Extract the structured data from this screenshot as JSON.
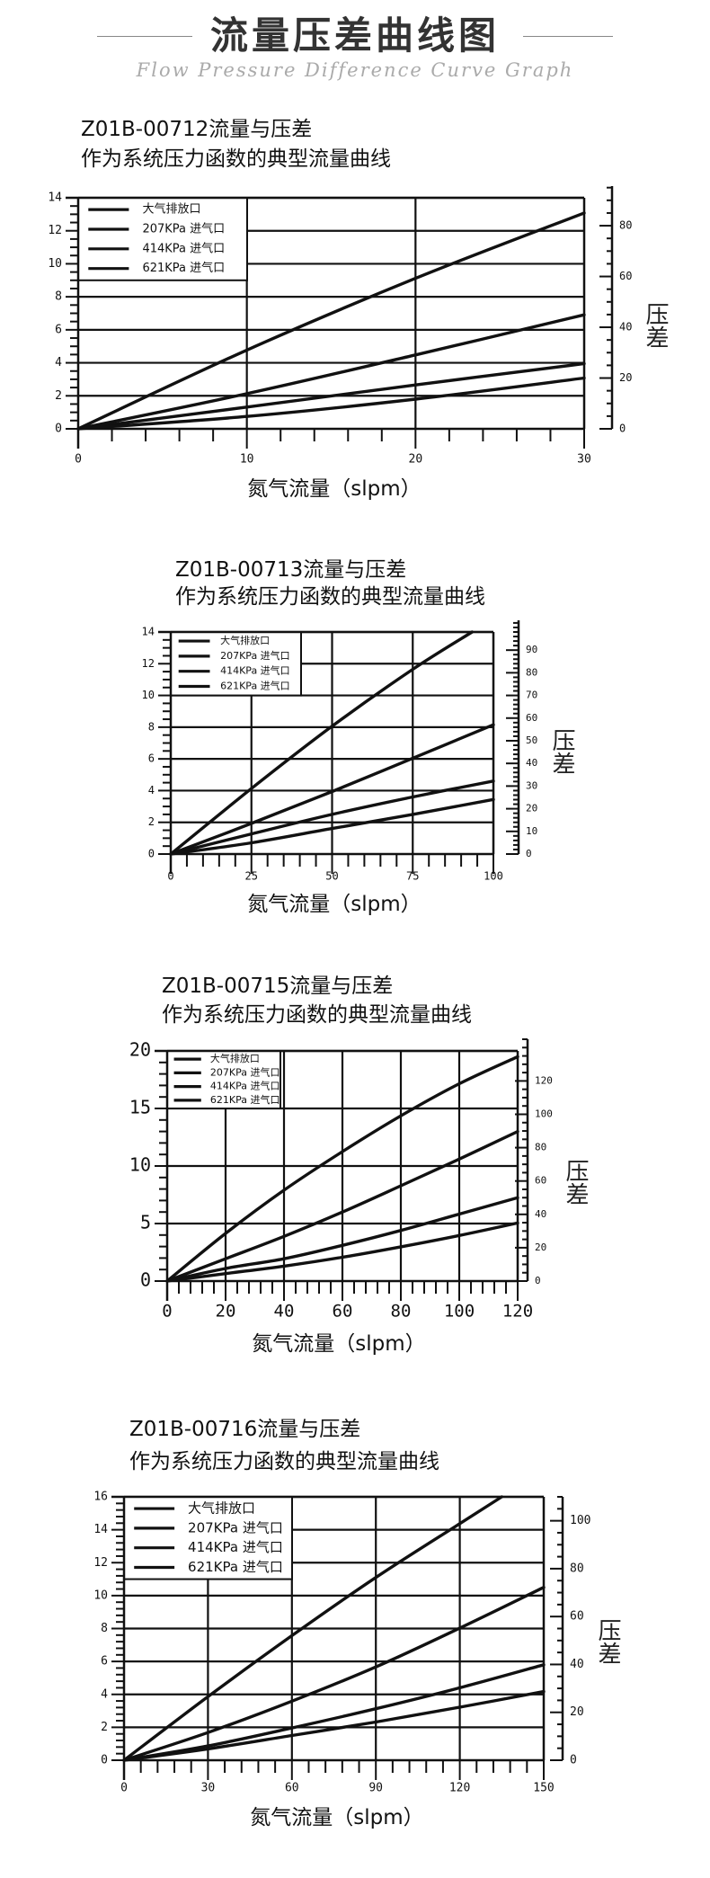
{
  "header": {
    "title": "流量压差曲线图",
    "subtitle": "Flow Pressure Difference Curve Graph"
  },
  "colors": {
    "line": "#111111",
    "header_text": "#333333",
    "subtitle_text": "#aaaaaa"
  },
  "chart_data": [
    {
      "type": "line",
      "title": "Z01B-00712流量与压差",
      "subtitle": "作为系统压力函数的典型流量曲线",
      "xlabel": "氮气流量（slpm）",
      "y2label": "压差",
      "xlim": [
        0,
        30
      ],
      "ylim": [
        0,
        14
      ],
      "y2lim": [
        0,
        91
      ],
      "xticks": [
        0,
        10,
        20,
        30
      ],
      "yticks": [
        0,
        2,
        4,
        6,
        8,
        10,
        12,
        14
      ],
      "y2ticks": [
        0,
        20,
        40,
        60,
        80
      ],
      "grid": true,
      "legend_position": "top-left",
      "series": [
        {
          "name": "大气排放口",
          "x": [
            0,
            10,
            20,
            30
          ],
          "y": [
            0,
            4.77,
            9.12,
            13.08
          ]
        },
        {
          "name": "207KPa 进气口",
          "x": [
            0,
            10,
            20,
            30
          ],
          "y": [
            0,
            2.13,
            4.48,
            6.91
          ]
        },
        {
          "name": "414KPa 进气口",
          "x": [
            0,
            10,
            20,
            30
          ],
          "y": [
            0,
            1.32,
            2.66,
            3.95
          ]
        },
        {
          "name": "621KPa 进气口",
          "x": [
            0,
            10,
            20,
            30
          ],
          "y": [
            0,
            0.75,
            1.8,
            3.08
          ]
        }
      ]
    },
    {
      "type": "line",
      "title": "Z01B-00713流量与压差",
      "subtitle": "作为系统压力函数的典型流量曲线",
      "xlabel": "氮气流量（slpm）",
      "y2label": "压差",
      "xlim": [
        0,
        100
      ],
      "ylim": [
        0,
        14
      ],
      "y2lim": [
        0,
        98
      ],
      "xticks": [
        0,
        25,
        50,
        75,
        100
      ],
      "yticks": [
        0,
        2,
        4,
        6,
        8,
        10,
        12,
        14
      ],
      "y2ticks": [
        0,
        10,
        20,
        30,
        40,
        50,
        60,
        70,
        80,
        90
      ],
      "grid": true,
      "legend_position": "top-left",
      "series": [
        {
          "name": "大气排放口",
          "x": [
            0,
            25,
            50,
            75,
            93.4
          ],
          "y": [
            0,
            4.13,
            8.06,
            11.65,
            14
          ]
        },
        {
          "name": "207KPa 进气口",
          "x": [
            0,
            25,
            50,
            75,
            100
          ],
          "y": [
            0,
            1.93,
            3.94,
            6.04,
            8.15
          ]
        },
        {
          "name": "414KPa 进气口",
          "x": [
            0,
            25,
            50,
            75,
            100
          ],
          "y": [
            0,
            1.27,
            2.5,
            3.6,
            4.6
          ]
        },
        {
          "name": "621KPa 进气口",
          "x": [
            0,
            25,
            50,
            75,
            100
          ],
          "y": [
            0,
            0.71,
            1.61,
            2.5,
            3.44
          ]
        }
      ]
    },
    {
      "type": "line",
      "title": "Z01B-00715流量与压差",
      "subtitle": "作为系统压力函数的典型流量曲线",
      "xlabel": "氮气流量（slpm）",
      "y2label": "压差",
      "xlim": [
        0,
        120
      ],
      "ylim": [
        0,
        20
      ],
      "y2lim": [
        0,
        138
      ],
      "xticks": [
        0,
        20,
        40,
        60,
        80,
        100,
        120
      ],
      "yticks": [
        0,
        5,
        10,
        15,
        20
      ],
      "y2ticks": [
        0,
        20,
        40,
        60,
        80,
        100,
        120
      ],
      "grid": true,
      "legend_position": "top-left",
      "series": [
        {
          "name": "大气排放口",
          "x": [
            0,
            20,
            40,
            60,
            80,
            100,
            120
          ],
          "y": [
            0,
            4.14,
            7.9,
            11.25,
            14.36,
            17.15,
            19.5
          ]
        },
        {
          "name": "207KPa 进气口",
          "x": [
            0,
            20,
            40,
            60,
            80,
            100,
            120
          ],
          "y": [
            0,
            1.94,
            3.88,
            6.0,
            8.28,
            10.6,
            13.0
          ]
        },
        {
          "name": "414KPa 进气口",
          "x": [
            0,
            20,
            40,
            60,
            80,
            100,
            120
          ],
          "y": [
            0,
            1.09,
            1.94,
            3.1,
            4.4,
            5.82,
            7.24
          ]
        },
        {
          "name": "621KPa 进气口",
          "x": [
            0,
            20,
            40,
            60,
            80,
            100,
            120
          ],
          "y": [
            0,
            0.65,
            1.3,
            2.07,
            2.98,
            3.96,
            5.05
          ]
        }
      ]
    },
    {
      "type": "line",
      "title": "Z01B-00716流量与压差",
      "subtitle": "作为系统压力函数的典型流量曲线",
      "xlabel": "氮气流量（slpm）",
      "y2label": "压差",
      "xlim": [
        0,
        150
      ],
      "ylim": [
        0,
        16
      ],
      "y2lim": [
        0,
        110
      ],
      "xticks": [
        0,
        30,
        60,
        90,
        120,
        150
      ],
      "yticks": [
        0,
        2,
        4,
        6,
        8,
        10,
        12,
        14,
        16
      ],
      "y2ticks": [
        0,
        20,
        40,
        60,
        80,
        100
      ],
      "grid": true,
      "legend_position": "top-left",
      "series": [
        {
          "name": "大气排放口",
          "x": [
            0,
            30,
            60,
            90,
            120,
            135
          ],
          "y": [
            0,
            3.86,
            7.57,
            11.1,
            14.37,
            16
          ]
        },
        {
          "name": "207KPa 进气口",
          "x": [
            0,
            30,
            60,
            90,
            120,
            150
          ],
          "y": [
            0,
            1.68,
            3.59,
            5.67,
            8.03,
            10.5
          ]
        },
        {
          "name": "414KPa 进气口",
          "x": [
            0,
            30,
            60,
            90,
            120,
            150
          ],
          "y": [
            0,
            0.87,
            1.96,
            3.13,
            4.4,
            5.8
          ]
        },
        {
          "name": "621KPa 进气口",
          "x": [
            0,
            30,
            60,
            90,
            120,
            150
          ],
          "y": [
            0,
            0.69,
            1.5,
            2.32,
            3.22,
            4.17
          ]
        }
      ]
    }
  ]
}
